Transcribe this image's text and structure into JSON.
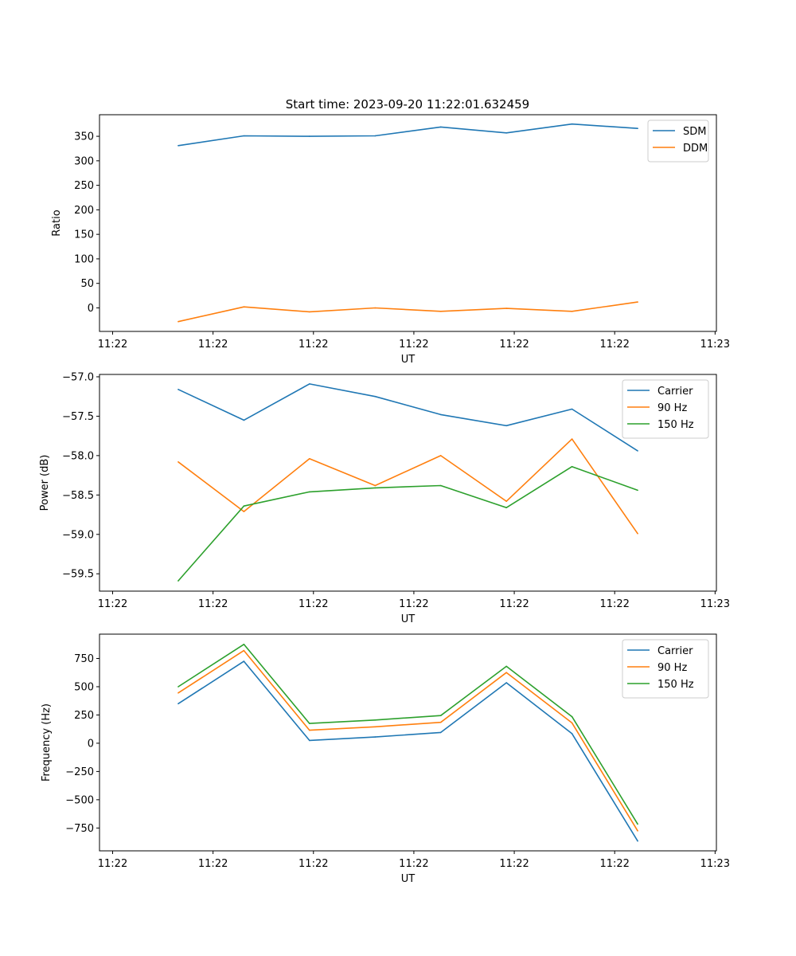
{
  "figure_title": "Start time: 2023-09-20 11:22:01.632459",
  "chart_data": [
    {
      "type": "line",
      "title": "Start time: 2023-09-20 11:22:01.632459",
      "xlabel": "UT",
      "ylabel": "Ratio",
      "x": [
        1,
        2,
        3,
        4,
        5,
        6,
        7,
        8
      ],
      "xlim": [
        -0.2,
        9.2
      ],
      "xticks": [
        0,
        1.53,
        3.06,
        4.59,
        6.12,
        7.65,
        9.18
      ],
      "xtick_labels": [
        "11:22",
        "11:22",
        "11:22",
        "11:22",
        "11:22",
        "11:22",
        "11:23"
      ],
      "ylim": [
        -48,
        394
      ],
      "yticks": [
        0,
        50,
        100,
        150,
        200,
        250,
        300,
        350
      ],
      "ytick_labels": [
        "0",
        "50",
        "100",
        "150",
        "200",
        "250",
        "300",
        "350"
      ],
      "legend_position": "top-right",
      "series": [
        {
          "name": "SDM",
          "color": "#1f77b4",
          "values": [
            331,
            351,
            350,
            351,
            369,
            357,
            375,
            366
          ]
        },
        {
          "name": "DDM",
          "color": "#ff7f0e",
          "values": [
            -28,
            2,
            -8,
            0,
            -7,
            -1,
            -7,
            12
          ]
        }
      ]
    },
    {
      "type": "line",
      "title": "",
      "xlabel": "UT",
      "ylabel": "Power (dB)",
      "x": [
        1,
        2,
        3,
        4,
        5,
        6,
        7,
        8
      ],
      "xlim": [
        -0.2,
        9.2
      ],
      "xticks": [
        0,
        1.53,
        3.06,
        4.59,
        6.12,
        7.65,
        9.18
      ],
      "xtick_labels": [
        "11:22",
        "11:22",
        "11:22",
        "11:22",
        "11:22",
        "11:22",
        "11:23"
      ],
      "ylim": [
        -59.72,
        -56.97
      ],
      "yticks": [
        -59.5,
        -59.0,
        -58.5,
        -58.0,
        -57.5,
        -57.0
      ],
      "ytick_labels": [
        "−59.5",
        "−59.0",
        "−58.5",
        "−58.0",
        "−57.5",
        "−57.0"
      ],
      "legend_position": "top-right",
      "series": [
        {
          "name": "Carrier",
          "color": "#1f77b4",
          "values": [
            -57.16,
            -57.55,
            -57.09,
            -57.25,
            -57.48,
            -57.62,
            -57.41,
            -57.94
          ]
        },
        {
          "name": "90 Hz",
          "color": "#ff7f0e",
          "values": [
            -58.08,
            -58.71,
            -58.04,
            -58.38,
            -58.0,
            -58.58,
            -57.79,
            -58.99
          ]
        },
        {
          "name": "150 Hz",
          "color": "#2ca02c",
          "values": [
            -59.59,
            -58.64,
            -58.46,
            -58.41,
            -58.38,
            -58.66,
            -58.14,
            -58.44
          ]
        }
      ]
    },
    {
      "type": "line",
      "title": "",
      "xlabel": "UT",
      "ylabel": "Frequency (Hz)",
      "x": [
        1,
        2,
        3,
        4,
        5,
        6,
        7,
        8
      ],
      "xlim": [
        -0.2,
        9.2
      ],
      "xticks": [
        0,
        1.53,
        3.06,
        4.59,
        6.12,
        7.65,
        9.18
      ],
      "xtick_labels": [
        "11:22",
        "11:22",
        "11:22",
        "11:22",
        "11:22",
        "11:22",
        "11:23"
      ],
      "ylim": [
        -952,
        965
      ],
      "yticks": [
        -750,
        -500,
        -250,
        0,
        250,
        500,
        750
      ],
      "ytick_labels": [
        "−750",
        "−500",
        "−250",
        "0",
        "250",
        "500",
        "750"
      ],
      "legend_position": "top-right",
      "series": [
        {
          "name": "Carrier",
          "color": "#1f77b4",
          "values": [
            350,
            725,
            25,
            55,
            95,
            535,
            85,
            -865
          ]
        },
        {
          "name": "90 Hz",
          "color": "#ff7f0e",
          "values": [
            445,
            820,
            115,
            145,
            185,
            625,
            180,
            -775
          ]
        },
        {
          "name": "150 Hz",
          "color": "#2ca02c",
          "values": [
            500,
            875,
            175,
            205,
            245,
            680,
            235,
            -715
          ]
        }
      ]
    }
  ]
}
